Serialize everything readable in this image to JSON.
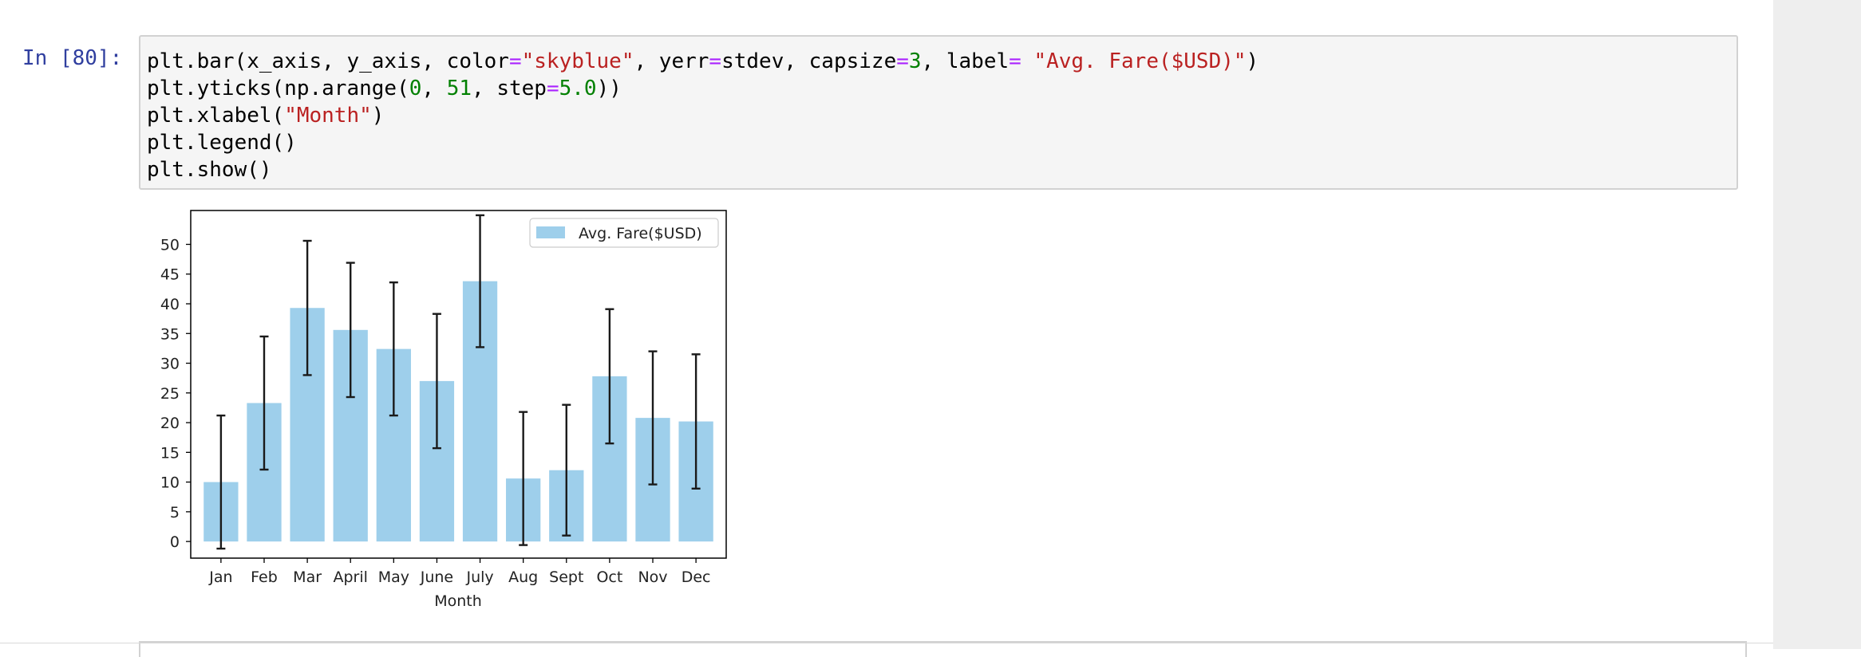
{
  "cell": {
    "prompt": "In [80]:",
    "code_lines": [
      [
        {
          "t": "plt.bar(x_axis, y_axis, color"
        },
        {
          "t": "=",
          "c": "op"
        },
        {
          "t": "\"skyblue\"",
          "c": "str"
        },
        {
          "t": ", yerr"
        },
        {
          "t": "=",
          "c": "op"
        },
        {
          "t": "stdev, capsize"
        },
        {
          "t": "=",
          "c": "op"
        },
        {
          "t": "3",
          "c": "num"
        },
        {
          "t": ", label"
        },
        {
          "t": "=",
          "c": "op"
        },
        {
          "t": " "
        },
        {
          "t": "\"Avg. Fare($USD)\"",
          "c": "str"
        },
        {
          "t": ")"
        }
      ],
      [
        {
          "t": "plt.yticks(np.arange("
        },
        {
          "t": "0",
          "c": "num"
        },
        {
          "t": ", "
        },
        {
          "t": "51",
          "c": "num"
        },
        {
          "t": ", step"
        },
        {
          "t": "=",
          "c": "op"
        },
        {
          "t": "5.0",
          "c": "num"
        },
        {
          "t": "))"
        }
      ],
      [
        {
          "t": "plt.xlabel("
        },
        {
          "t": "\"Month\"",
          "c": "str"
        },
        {
          "t": ")"
        }
      ],
      [
        {
          "t": "plt.legend()"
        }
      ],
      [
        {
          "t": "plt.show()"
        }
      ]
    ]
  },
  "colors": {
    "prompt": "#303f9f",
    "string": "#ba2121",
    "operator": "#aa22ff",
    "number": "#008000",
    "bar": "#9ecfeb",
    "errorbar": "#1a1a1a"
  },
  "chart_data": {
    "type": "bar",
    "categories": [
      "Jan",
      "Feb",
      "Mar",
      "April",
      "May",
      "June",
      "July",
      "Aug",
      "Sept",
      "Oct",
      "Nov",
      "Dec"
    ],
    "series": [
      {
        "name": "Avg. Fare($USD)",
        "values": [
          10.0,
          23.3,
          39.3,
          35.6,
          32.4,
          27.0,
          43.8,
          10.6,
          12.0,
          27.8,
          20.8,
          20.2
        ],
        "yerr": [
          11.2,
          11.2,
          11.3,
          11.3,
          11.2,
          11.3,
          11.1,
          11.2,
          11.0,
          11.3,
          11.2,
          11.3
        ]
      }
    ],
    "title": "",
    "xlabel": "Month",
    "ylabel": "",
    "ylim": [
      -2.8,
      55.7
    ],
    "yticks": [
      0,
      5,
      10,
      15,
      20,
      25,
      30,
      35,
      40,
      45,
      50
    ],
    "legend": {
      "position": "top-right",
      "label": "Avg. Fare($USD)"
    },
    "grid": false
  }
}
